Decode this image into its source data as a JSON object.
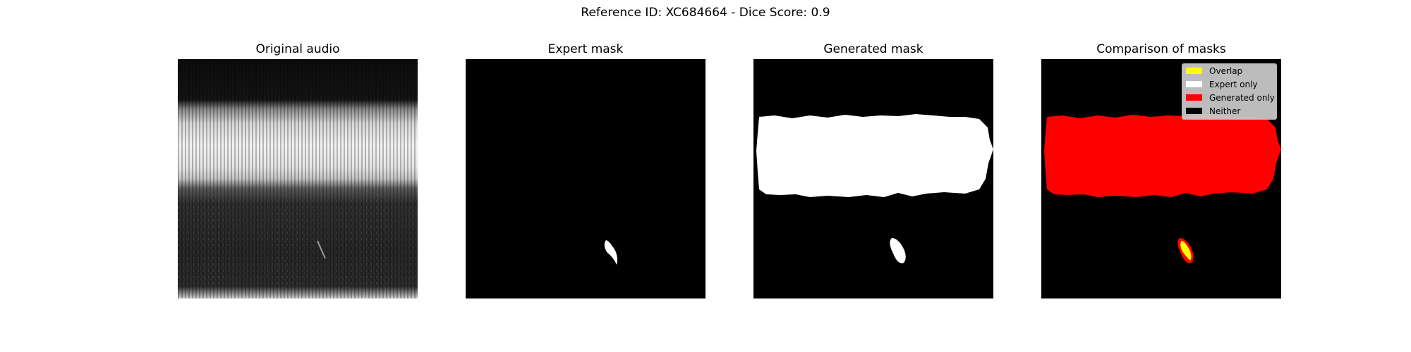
{
  "figure": {
    "suptitle": "Reference ID: XC684664 - Dice Score: 0.9",
    "panels": [
      {
        "title": "Original audio"
      },
      {
        "title": "Expert mask"
      },
      {
        "title": "Generated mask"
      },
      {
        "title": "Comparison of masks"
      }
    ],
    "legend": {
      "items": [
        {
          "label": "Overlap",
          "color": "#ffff00"
        },
        {
          "label": "Expert only",
          "color": "#ffffff"
        },
        {
          "label": "Generated only",
          "color": "#ff0000"
        },
        {
          "label": "Neither",
          "color": "#000000"
        }
      ]
    }
  }
}
